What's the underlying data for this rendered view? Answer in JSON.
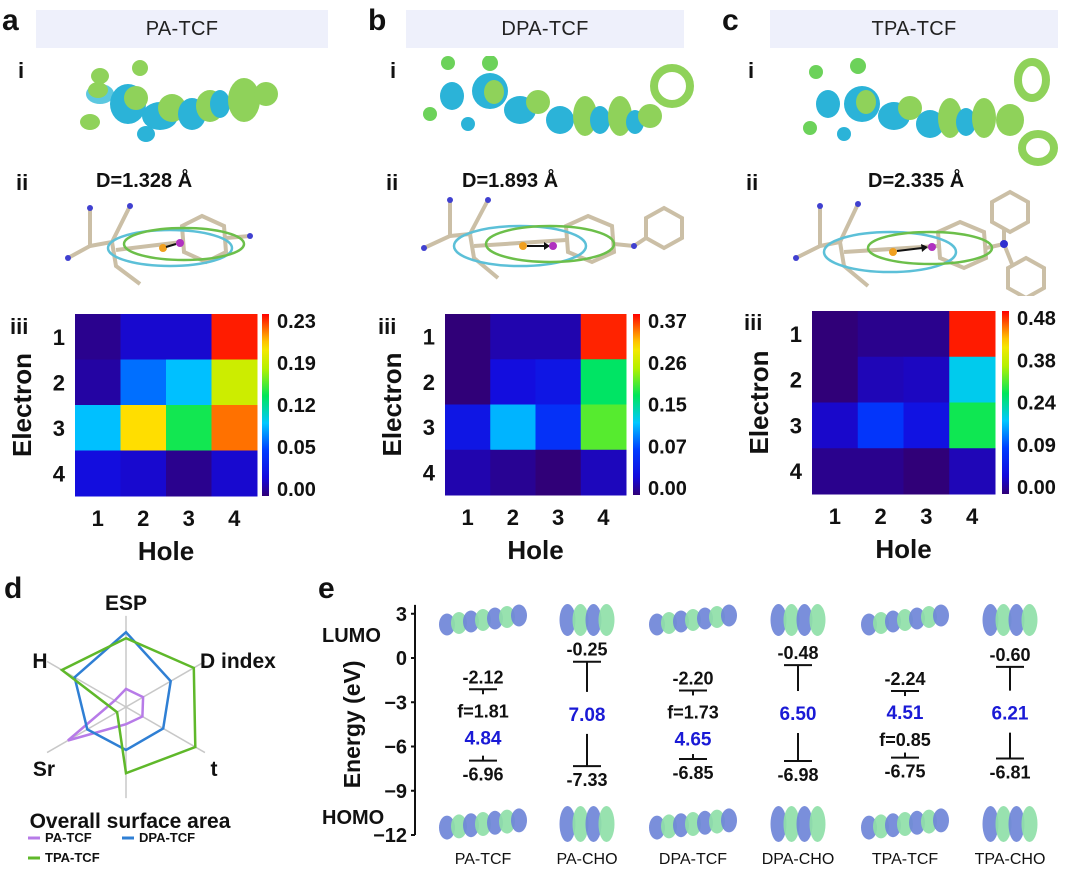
{
  "panels": [
    {
      "letter": "a",
      "title": "PA-TCF",
      "roman_i": "i",
      "roman_ii": "ii",
      "roman_iii": "iii",
      "distance_label": "D=1.328 Å",
      "orbital_icon": "frontier-orbital-isosurface",
      "dipole_icon": "charge-centroid-ellipsoid"
    },
    {
      "letter": "b",
      "title": "DPA-TCF",
      "roman_i": "i",
      "roman_ii": "ii",
      "roman_iii": "iii",
      "distance_label": "D=1.893 Å",
      "orbital_icon": "frontier-orbital-isosurface",
      "dipole_icon": "charge-centroid-ellipsoid"
    },
    {
      "letter": "c",
      "title": "TPA-TCF",
      "roman_i": "i",
      "roman_ii": "ii",
      "roman_iii": "iii",
      "distance_label": "D=2.335 Å",
      "orbital_icon": "frontier-orbital-isosurface",
      "dipole_icon": "charge-centroid-ellipsoid"
    }
  ],
  "panel_d": {
    "letter": "d"
  },
  "panel_e": {
    "letter": "e"
  },
  "chart_data": [
    {
      "type": "heatmap",
      "id": "heatmap-pa-tcf",
      "title": "PA-TCF",
      "xlabel": "Hole",
      "ylabel": "Electron",
      "x_ticks": [
        "1",
        "2",
        "3",
        "4"
      ],
      "y_ticks": [
        "1",
        "2",
        "3",
        "4"
      ],
      "colorbar_ticks": [
        "0.23",
        "0.19",
        "0.12",
        "0.05",
        "0.00"
      ],
      "vmin": 0.0,
      "vmax": 0.23,
      "values": [
        [
          0.005,
          0.02,
          0.02,
          0.225
        ],
        [
          0.01,
          0.07,
          0.09,
          0.17
        ],
        [
          0.09,
          0.19,
          0.13,
          0.21
        ],
        [
          0.025,
          0.02,
          0.005,
          0.02
        ]
      ]
    },
    {
      "type": "heatmap",
      "id": "heatmap-dpa-tcf",
      "title": "DPA-TCF",
      "xlabel": "Hole",
      "ylabel": "Electron",
      "x_ticks": [
        "1",
        "2",
        "3",
        "4"
      ],
      "y_ticks": [
        "1",
        "2",
        "3",
        "4"
      ],
      "colorbar_ticks": [
        "0.37",
        "0.26",
        "0.15",
        "0.07",
        "0.00"
      ],
      "vmin": 0.0,
      "vmax": 0.37,
      "values": [
        [
          0.0,
          0.02,
          0.02,
          0.36
        ],
        [
          0.0,
          0.04,
          0.05,
          0.2
        ],
        [
          0.05,
          0.14,
          0.08,
          0.23
        ],
        [
          0.02,
          0.01,
          0.0,
          0.025
        ]
      ]
    },
    {
      "type": "heatmap",
      "id": "heatmap-tpa-tcf",
      "title": "TPA-TCF",
      "xlabel": "Hole",
      "ylabel": "Electron",
      "x_ticks": [
        "1",
        "2",
        "3",
        "4"
      ],
      "y_ticks": [
        "1",
        "2",
        "3",
        "4"
      ],
      "colorbar_ticks": [
        "0.48",
        "0.38",
        "0.24",
        "0.09",
        "0.00"
      ],
      "vmin": 0.0,
      "vmax": 0.48,
      "values": [
        [
          0.0,
          0.01,
          0.01,
          0.47
        ],
        [
          0.0,
          0.03,
          0.035,
          0.2
        ],
        [
          0.04,
          0.11,
          0.06,
          0.27
        ],
        [
          0.01,
          0.01,
          0.0,
          0.03
        ]
      ]
    },
    {
      "type": "radar",
      "id": "radar-descriptors",
      "axes": [
        "ESP",
        "D index",
        "t",
        "Overall surface area",
        "Sr",
        "H"
      ],
      "range": [
        0,
        1
      ],
      "grid": true,
      "legend_position": "bottom-left",
      "series": [
        {
          "name": "PA-TCF",
          "color": "#b77be8",
          "values": [
            0.21,
            0.23,
            0.22,
            0.2,
            0.78,
            0.15
          ]
        },
        {
          "name": "DPA-TCF",
          "color": "#2f7fd4",
          "values": [
            0.87,
            0.6,
            0.5,
            0.5,
            0.52,
            0.69
          ]
        },
        {
          "name": "TPA-TCF",
          "color": "#5fb82a",
          "values": [
            0.8,
            0.91,
            0.93,
            0.77,
            0.12,
            0.86
          ]
        }
      ]
    },
    {
      "type": "energy-level",
      "id": "energy-diagram",
      "ylabel": "Energy (eV)",
      "y_ticks": [
        "3",
        "0",
        "−3",
        "−6",
        "−9",
        "−12"
      ],
      "y_tick_values": [
        3,
        0,
        -3,
        -6,
        -9,
        -12
      ],
      "ylim": [
        -12,
        3
      ],
      "lumo_label": "LUMO",
      "homo_label": "HOMO",
      "categories": [
        "PA-TCF",
        "PA-CHO",
        "DPA-TCF",
        "DPA-CHO",
        "TPA-TCF",
        "TPA-CHO"
      ],
      "lumo": [
        -2.12,
        -0.25,
        -2.2,
        -0.48,
        -2.24,
        -0.6
      ],
      "homo": [
        -6.96,
        -7.33,
        -6.85,
        -6.98,
        -6.75,
        -6.81
      ],
      "lumo_text": [
        "-2.12",
        "-0.25",
        "-2.20",
        "-0.48",
        "-2.24",
        "-0.60"
      ],
      "homo_text": [
        "-6.96",
        "-7.33",
        "-6.85",
        "-6.98",
        "-6.75",
        "-6.81"
      ],
      "gap_text": [
        "4.84",
        "7.08",
        "4.65",
        "6.50",
        "4.51",
        "6.21"
      ],
      "osc_text": [
        "f=1.81",
        "",
        "f=1.73",
        "",
        "f=0.85",
        ""
      ],
      "gap_color": "#1a1ad6"
    }
  ]
}
